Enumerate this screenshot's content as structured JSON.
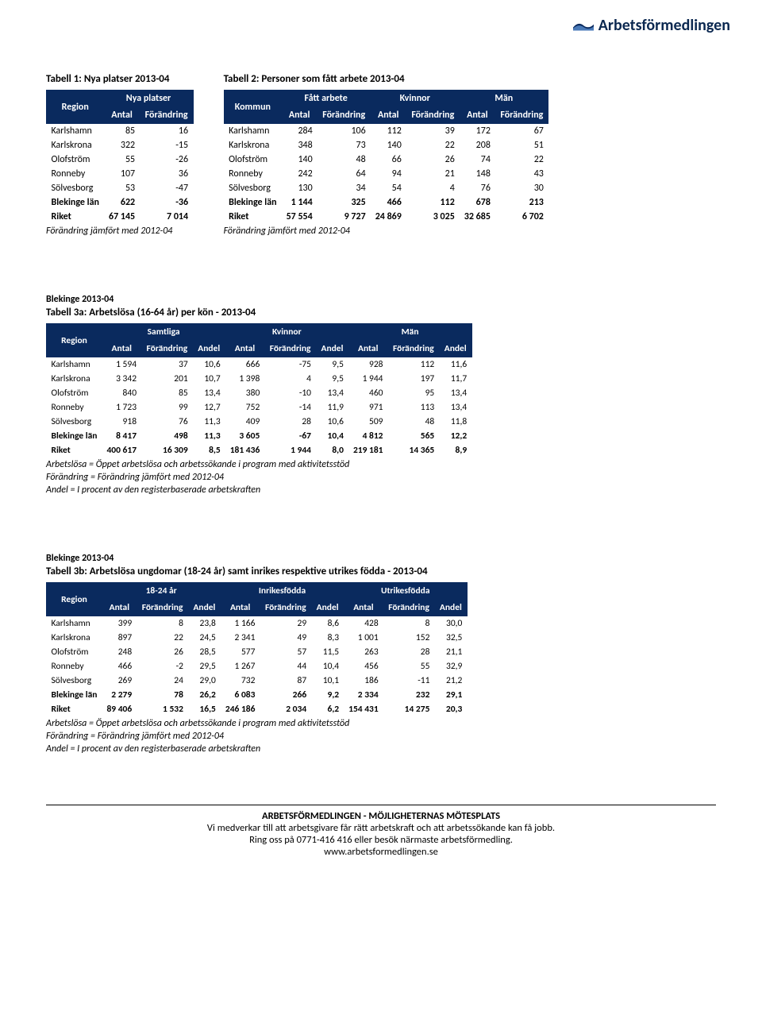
{
  "logo_text": "Arbetsförmedlingen",
  "table1": {
    "title": "Tabell 1: Nya platser 2013-04",
    "header_region": "Region",
    "header_group": "Nya platser",
    "header_antal": "Antal",
    "header_forandring": "Förändring",
    "rows": [
      {
        "label": "Karlshamn",
        "antal": "85",
        "for": "16"
      },
      {
        "label": "Karlskrona",
        "antal": "322",
        "for": "-15"
      },
      {
        "label": "Olofström",
        "antal": "55",
        "for": "-26"
      },
      {
        "label": "Ronneby",
        "antal": "107",
        "for": "36"
      },
      {
        "label": "Sölvesborg",
        "antal": "53",
        "for": "-47"
      },
      {
        "label": "Blekinge län",
        "antal": "622",
        "for": "-36",
        "bold": true
      },
      {
        "label": "Riket",
        "antal": "67 145",
        "for": "7 014",
        "bold": true
      }
    ],
    "note": "Förändring jämfört med 2012-04"
  },
  "table2": {
    "title": "Tabell 2: Personer som fått arbete 2013-04",
    "header_kommun": "Kommun",
    "group1": "Fått arbete",
    "group2": "Kvinnor",
    "group3": "Män",
    "h_antal": "Antal",
    "h_for": "Förändring",
    "rows": [
      {
        "label": "Karlshamn",
        "a1": "284",
        "f1": "106",
        "a2": "112",
        "f2": "39",
        "a3": "172",
        "f3": "67"
      },
      {
        "label": "Karlskrona",
        "a1": "348",
        "f1": "73",
        "a2": "140",
        "f2": "22",
        "a3": "208",
        "f3": "51"
      },
      {
        "label": "Olofström",
        "a1": "140",
        "f1": "48",
        "a2": "66",
        "f2": "26",
        "a3": "74",
        "f3": "22"
      },
      {
        "label": "Ronneby",
        "a1": "242",
        "f1": "64",
        "a2": "94",
        "f2": "21",
        "a3": "148",
        "f3": "43"
      },
      {
        "label": "Sölvesborg",
        "a1": "130",
        "f1": "34",
        "a2": "54",
        "f2": "4",
        "a3": "76",
        "f3": "30"
      },
      {
        "label": "Blekinge län",
        "a1": "1 144",
        "f1": "325",
        "a2": "466",
        "f2": "112",
        "a3": "678",
        "f3": "213",
        "bold": true
      },
      {
        "label": "Riket",
        "a1": "57 554",
        "f1": "9 727",
        "a2": "24 869",
        "f2": "3 025",
        "a3": "32 685",
        "f3": "6 702",
        "bold": true
      }
    ],
    "note": "Förändring jämfört med 2012-04"
  },
  "table3a": {
    "pre": "Blekinge 2013-04",
    "title": "Tabell 3a: Arbetslösa (16-64 år) per kön - 2013-04",
    "header_region": "Region",
    "g1": "Samtliga",
    "g2": "Kvinnor",
    "g3": "Män",
    "h_antal": "Antal",
    "h_for": "Förändring",
    "h_andel": "Andel",
    "rows": [
      {
        "label": "Karlshamn",
        "a1": "1 594",
        "f1": "37",
        "d1": "10,6",
        "a2": "666",
        "f2": "-75",
        "d2": "9,5",
        "a3": "928",
        "f3": "112",
        "d3": "11,6"
      },
      {
        "label": "Karlskrona",
        "a1": "3 342",
        "f1": "201",
        "d1": "10,7",
        "a2": "1 398",
        "f2": "4",
        "d2": "9,5",
        "a3": "1 944",
        "f3": "197",
        "d3": "11,7"
      },
      {
        "label": "Olofström",
        "a1": "840",
        "f1": "85",
        "d1": "13,4",
        "a2": "380",
        "f2": "-10",
        "d2": "13,4",
        "a3": "460",
        "f3": "95",
        "d3": "13,4"
      },
      {
        "label": "Ronneby",
        "a1": "1 723",
        "f1": "99",
        "d1": "12,7",
        "a2": "752",
        "f2": "-14",
        "d2": "11,9",
        "a3": "971",
        "f3": "113",
        "d3": "13,4"
      },
      {
        "label": "Sölvesborg",
        "a1": "918",
        "f1": "76",
        "d1": "11,3",
        "a2": "409",
        "f2": "28",
        "d2": "10,6",
        "a3": "509",
        "f3": "48",
        "d3": "11,8"
      },
      {
        "label": "Blekinge län",
        "a1": "8 417",
        "f1": "498",
        "d1": "11,3",
        "a2": "3 605",
        "f2": "-67",
        "d2": "10,4",
        "a3": "4 812",
        "f3": "565",
        "d3": "12,2",
        "bold": true
      },
      {
        "label": "Riket",
        "a1": "400 617",
        "f1": "16 309",
        "d1": "8,5",
        "a2": "181 436",
        "f2": "1 944",
        "d2": "8,0",
        "a3": "219 181",
        "f3": "14 365",
        "d3": "8,9",
        "bold": true
      }
    ],
    "note1": "Arbetslösa = Öppet arbetslösa och arbetssökande i program med aktivitetsstöd",
    "note2": "Förändring = Förändring jämfört med 2012-04",
    "note3": "Andel = I procent av den registerbaserade arbetskraften"
  },
  "table3b": {
    "pre": "Blekinge 2013-04",
    "title": "Tabell 3b: Arbetslösa ungdomar (18-24 år)  samt inrikes respektive utrikes födda - 2013-04",
    "header_region": "Region",
    "g1": "18-24 år",
    "g2": "Inrikesfödda",
    "g3": "Utrikesfödda",
    "h_antal": "Antal",
    "h_for": "Förändring",
    "h_andel": "Andel",
    "rows": [
      {
        "label": "Karlshamn",
        "a1": "399",
        "f1": "8",
        "d1": "23,8",
        "a2": "1 166",
        "f2": "29",
        "d2": "8,6",
        "a3": "428",
        "f3": "8",
        "d3": "30,0"
      },
      {
        "label": "Karlskrona",
        "a1": "897",
        "f1": "22",
        "d1": "24,5",
        "a2": "2 341",
        "f2": "49",
        "d2": "8,3",
        "a3": "1 001",
        "f3": "152",
        "d3": "32,5"
      },
      {
        "label": "Olofström",
        "a1": "248",
        "f1": "26",
        "d1": "28,5",
        "a2": "577",
        "f2": "57",
        "d2": "11,5",
        "a3": "263",
        "f3": "28",
        "d3": "21,1"
      },
      {
        "label": "Ronneby",
        "a1": "466",
        "f1": "-2",
        "d1": "29,5",
        "a2": "1 267",
        "f2": "44",
        "d2": "10,4",
        "a3": "456",
        "f3": "55",
        "d3": "32,9"
      },
      {
        "label": "Sölvesborg",
        "a1": "269",
        "f1": "24",
        "d1": "29,0",
        "a2": "732",
        "f2": "87",
        "d2": "10,1",
        "a3": "186",
        "f3": "-11",
        "d3": "21,2"
      },
      {
        "label": "Blekinge län",
        "a1": "2 279",
        "f1": "78",
        "d1": "26,2",
        "a2": "6 083",
        "f2": "266",
        "d2": "9,2",
        "a3": "2 334",
        "f3": "232",
        "d3": "29,1",
        "bold": true
      },
      {
        "label": "Riket",
        "a1": "89 406",
        "f1": "1 532",
        "d1": "16,5",
        "a2": "246 186",
        "f2": "2 034",
        "d2": "6,2",
        "a3": "154 431",
        "f3": "14 275",
        "d3": "20,3",
        "bold": true
      }
    ],
    "note1": "Arbetslösa = Öppet arbetslösa och arbetssökande i program med aktivitetsstöd",
    "note2": "Förändring = Förändring jämfört med 2012-04",
    "note3": "Andel = I procent av den registerbaserade arbetskraften"
  },
  "footer": {
    "l1": "ARBETSFÖRMEDLINGEN - MÖJLIGHETERNAS MÖTESPLATS",
    "l2": "Vi medverkar till att arbetsgivare får rätt arbetskraft och att arbetssökande kan få jobb.",
    "l3": "Ring oss på 0771-416 416 eller besök närmaste arbetsförmedling.",
    "l4": "www.arbetsformedlingen.se"
  }
}
